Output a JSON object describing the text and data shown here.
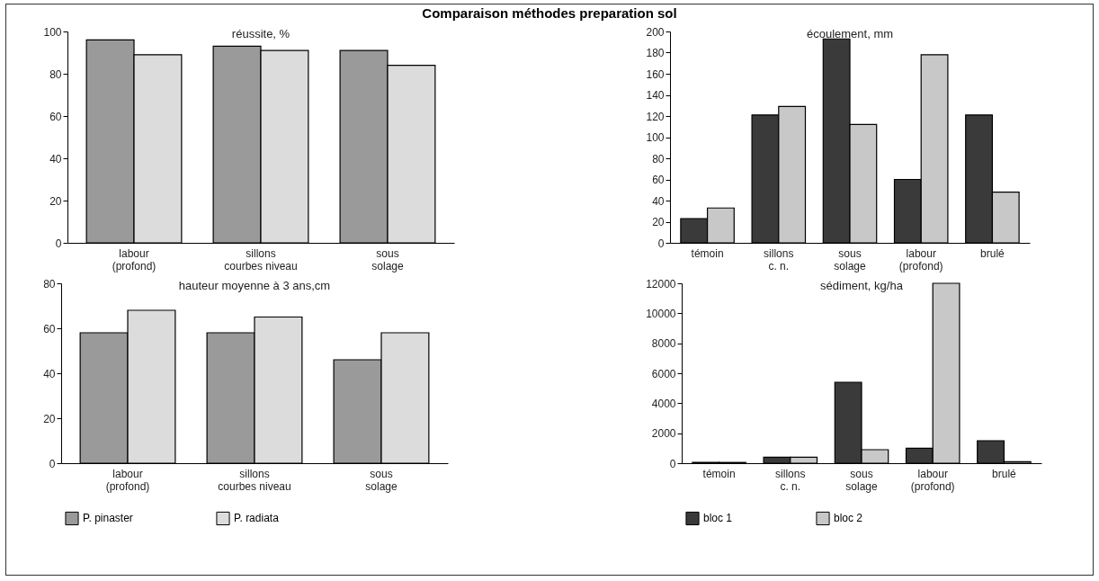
{
  "chart_data": [
    {
      "type": "bar",
      "title": "Comparaison méthodes preparation sol",
      "subtitle": "réussite, %",
      "categories": [
        "labour\n(profond)",
        "sillons\ncourbes niveau",
        "sous\nsolage"
      ],
      "series": [
        {
          "color": "#9a9a9a",
          "values": [
            96,
            93,
            91
          ]
        },
        {
          "color": "#dcdcdc",
          "values": [
            89,
            91,
            84
          ]
        }
      ],
      "ylim": [
        0,
        100
      ],
      "yticks": [
        0,
        20,
        40,
        60,
        80,
        100
      ],
      "grid": false
    },
    {
      "type": "bar",
      "title": "écoulement, mm",
      "categories": [
        "témoin",
        "sillons\nc. n.",
        "sous\nsolage",
        "labour\n(profond)",
        "brulé"
      ],
      "series": [
        {
          "color": "#3a3a3a",
          "values": [
            23,
            121,
            193,
            60,
            121
          ]
        },
        {
          "color": "#c8c8c8",
          "values": [
            33,
            129,
            112,
            178,
            48
          ]
        }
      ],
      "ylim": [
        0,
        200
      ],
      "yticks": [
        0,
        20,
        40,
        60,
        80,
        100,
        120,
        140,
        160,
        180,
        200
      ],
      "grid": false
    },
    {
      "type": "bar",
      "title": "hauteur moyenne à 3 ans,cm",
      "categories": [
        "labour\n(profond)",
        "sillons\ncourbes niveau",
        "sous\nsolage"
      ],
      "series": [
        {
          "name": "P. pinaster",
          "color": "#9a9a9a",
          "values": [
            58,
            58,
            46
          ]
        },
        {
          "name": "P. radiata",
          "color": "#dcdcdc",
          "values": [
            68,
            65,
            58
          ]
        }
      ],
      "ylim": [
        0,
        80
      ],
      "yticks": [
        0,
        20,
        40,
        60,
        80
      ],
      "grid": false,
      "legend": "bottom"
    },
    {
      "type": "bar",
      "title": "sédiment, kg/ha",
      "categories": [
        "témoin",
        "sillons\nc. n.",
        "sous\nsolage",
        "labour\n(profond)",
        "brulé"
      ],
      "series": [
        {
          "name": "bloc 1",
          "color": "#3a3a3a",
          "values": [
            50,
            400,
            5400,
            1000,
            1500
          ]
        },
        {
          "name": "bloc 2",
          "color": "#c8c8c8",
          "values": [
            50,
            400,
            900,
            12000,
            100
          ]
        }
      ],
      "ylim": [
        0,
        12000
      ],
      "yticks": [
        0,
        2000,
        4000,
        6000,
        8000,
        10000,
        12000
      ],
      "grid": false,
      "legend": "bottom"
    }
  ]
}
